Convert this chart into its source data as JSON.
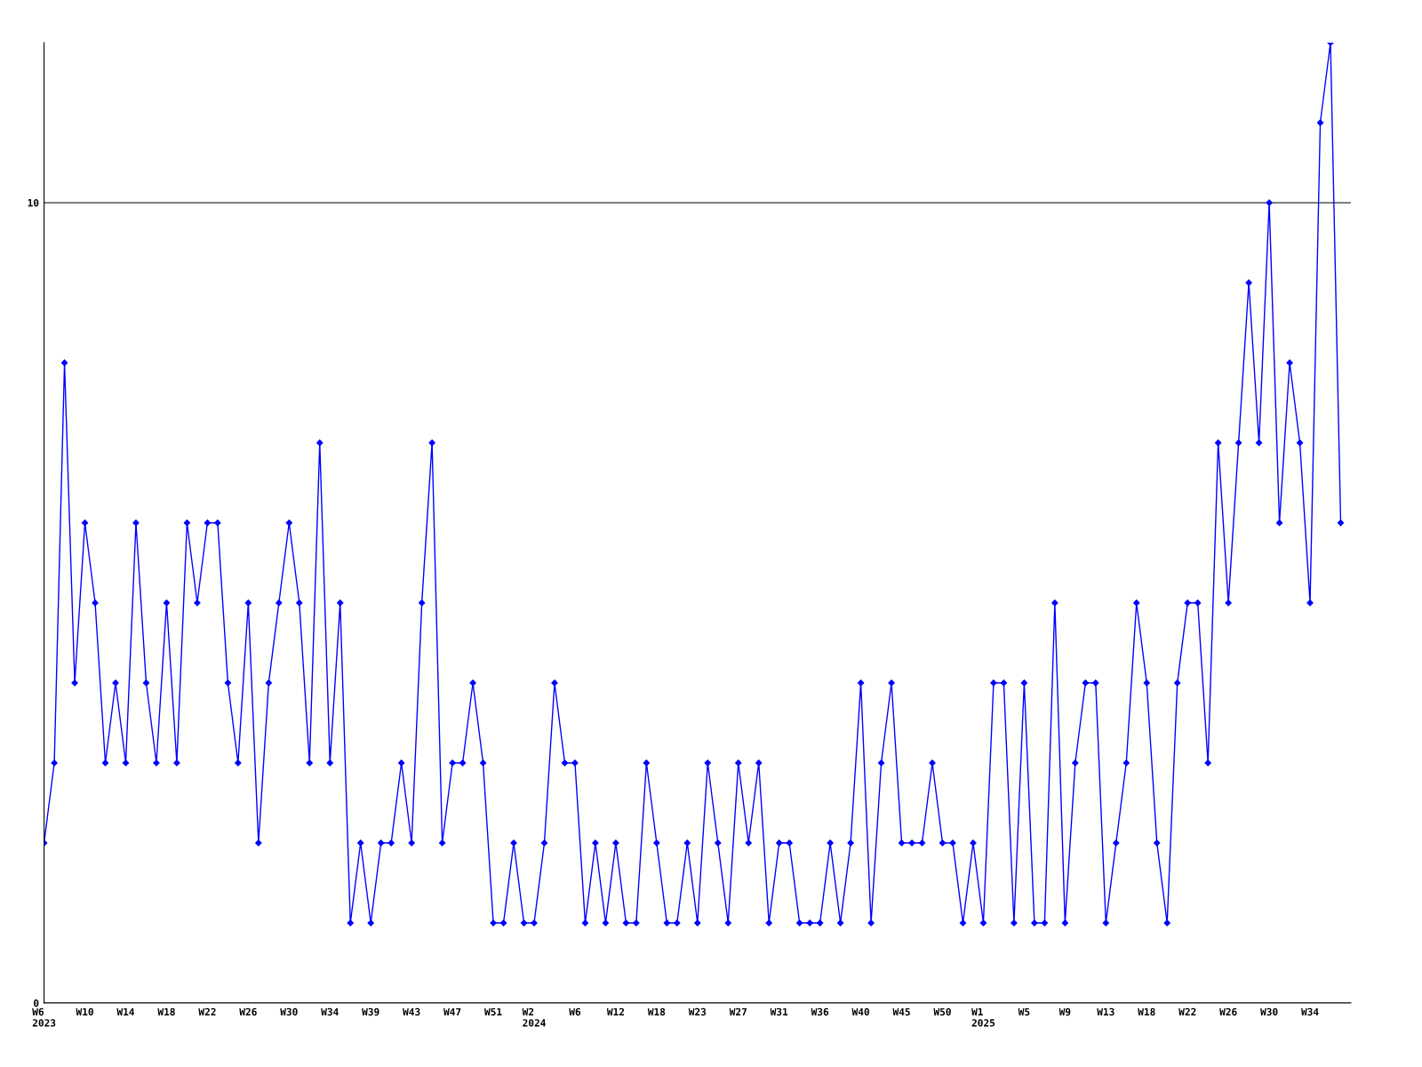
{
  "chart_data": {
    "type": "line",
    "categories": [
      "W6\n2023",
      null,
      null,
      null,
      "W10",
      null,
      null,
      null,
      "W14",
      null,
      null,
      null,
      "W18",
      null,
      null,
      null,
      "W22",
      null,
      null,
      null,
      "W26",
      null,
      null,
      null,
      "W30",
      null,
      null,
      null,
      "W34",
      null,
      null,
      null,
      "W39",
      null,
      null,
      null,
      "W43",
      null,
      null,
      null,
      "W47",
      null,
      null,
      null,
      "W51",
      null,
      null,
      null,
      "W2\n2024",
      null,
      null,
      null,
      "W6",
      null,
      null,
      null,
      "W12",
      null,
      null,
      null,
      "W18",
      null,
      null,
      null,
      "W23",
      null,
      null,
      null,
      "W27",
      null,
      null,
      null,
      "W31",
      null,
      null,
      null,
      "W36",
      null,
      null,
      null,
      "W40",
      null,
      null,
      null,
      "W45",
      null,
      null,
      null,
      "W50",
      null,
      null,
      null,
      "W1\n2025",
      null,
      null,
      null,
      "W5",
      null,
      null,
      null,
      "W9",
      null,
      null,
      null,
      "W13",
      null,
      null,
      null,
      "W18",
      null,
      null,
      null,
      "W22",
      null,
      null,
      null,
      "W26",
      null,
      null,
      null,
      "W30",
      null,
      null,
      null,
      "W34",
      null,
      null,
      null
    ],
    "series": [
      {
        "color": "#0000ff",
        "values": [
          2,
          3,
          8,
          4,
          6,
          5,
          3,
          4,
          3,
          6,
          4,
          3,
          5,
          3,
          6,
          5,
          6,
          6,
          4,
          3,
          5,
          2,
          4,
          5,
          6,
          5,
          3,
          7,
          3,
          5,
          1,
          2,
          1,
          2,
          2,
          3,
          2,
          5,
          7,
          2,
          3,
          3,
          4,
          3,
          1,
          1,
          2,
          1,
          1,
          2,
          4,
          3,
          3,
          1,
          2,
          1,
          2,
          1,
          1,
          3,
          2,
          1,
          1,
          2,
          1,
          3,
          2,
          1,
          3,
          2,
          3,
          1,
          2,
          2,
          1,
          1,
          1,
          2,
          1,
          2,
          4,
          1,
          3,
          4,
          2,
          2,
          2,
          3,
          2,
          2,
          1,
          2,
          1,
          4,
          4,
          1,
          4,
          1,
          1,
          5,
          1,
          3,
          4,
          4,
          1,
          2,
          3,
          5,
          4,
          2,
          1,
          4,
          5,
          5,
          3,
          7,
          5,
          7,
          9,
          7,
          10,
          6,
          8,
          7,
          5,
          11,
          12,
          6
        ]
      }
    ],
    "ylim": [
      0,
      12
    ],
    "yticks": [
      0,
      10
    ],
    "grid": "y",
    "marker": "diamond",
    "line_style": "solid",
    "legend": false
  }
}
